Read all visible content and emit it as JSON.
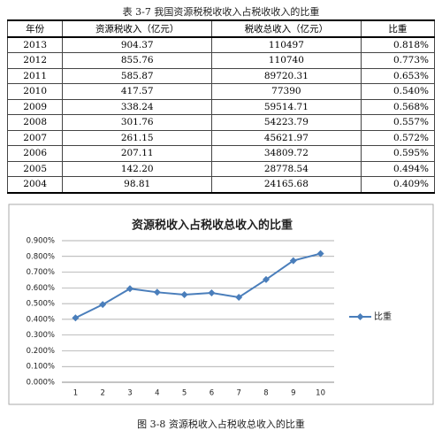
{
  "table": {
    "caption": "表 3-7   我国资源税税收收入占税收收入的比重",
    "headers": [
      "年份",
      "资源税收入（亿元）",
      "税收总收入（亿元）",
      "比重"
    ],
    "rows": [
      [
        "2013",
        "904.37",
        "110497",
        "0.818%"
      ],
      [
        "2012",
        "855.76",
        "110740",
        "0.773%"
      ],
      [
        "2011",
        "585.87",
        "89720.31",
        "0.653%"
      ],
      [
        "2010",
        "417.57",
        "77390",
        "0.540%"
      ],
      [
        "2009",
        "338.24",
        "59514.71",
        "0.568%"
      ],
      [
        "2008",
        "301.76",
        "54223.79",
        "0.557%"
      ],
      [
        "2007",
        "261.15",
        "45621.97",
        "0.572%"
      ],
      [
        "2006",
        "207.11",
        "34809.72",
        "0.595%"
      ],
      [
        "2005",
        "142.20",
        "28778.54",
        "0.494%"
      ],
      [
        "2004",
        "98.81",
        "24165.68",
        "0.409%"
      ]
    ]
  },
  "chart_data": {
    "type": "line",
    "title": "资源税收入占税收总收入的比重",
    "categories": [
      1,
      2,
      3,
      4,
      5,
      6,
      7,
      8,
      9,
      10
    ],
    "series": [
      {
        "name": "比重",
        "color": "#4a7ebb",
        "values": [
          0.409,
          0.494,
          0.595,
          0.572,
          0.557,
          0.568,
          0.54,
          0.653,
          0.773,
          0.818
        ]
      }
    ],
    "ylim": [
      0,
      0.9
    ],
    "yticks": [
      {
        "value": 0,
        "label": "0.000%"
      },
      {
        "value": 0.1,
        "label": "0.100%"
      },
      {
        "value": 0.2,
        "label": "0.200%"
      },
      {
        "value": 0.3,
        "label": "0.300%"
      },
      {
        "value": 0.4,
        "label": "0.400%"
      },
      {
        "value": 0.5,
        "label": "0.500%"
      },
      {
        "value": 0.6,
        "label": "0.600%"
      },
      {
        "value": 0.7,
        "label": "0.700%"
      },
      {
        "value": 0.8,
        "label": "0.800%"
      },
      {
        "value": 0.9,
        "label": "0.900%"
      }
    ],
    "grid": true,
    "legend": "right"
  },
  "figure_caption": "图 3-8 资源税收入占税收总收入的比重"
}
